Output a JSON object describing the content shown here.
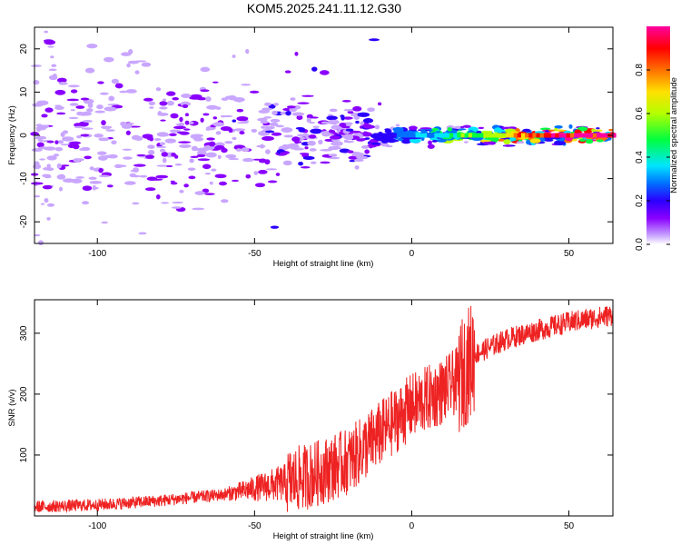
{
  "title": "KOM5.2025.241.11.12.G30",
  "chart_data": [
    {
      "type": "heatmap",
      "name": "spectrogram",
      "xlabel": "Height of straight line (km)",
      "ylabel": "Frequency (Hz)",
      "xlim": [
        -120,
        64
      ],
      "ylim": [
        -25,
        25
      ],
      "xticks": [
        -100,
        -50,
        0,
        50
      ],
      "yticks": [
        -20,
        -10,
        0,
        10,
        20
      ],
      "xtick_labels": [
        "-100",
        "-50",
        "0",
        "50"
      ],
      "ytick_labels": [
        "-20",
        "-10",
        "0",
        "10",
        "20"
      ],
      "colorbar": {
        "label": "Normalized spectral amplitude",
        "range": [
          0,
          1
        ],
        "ticks": [
          0.0,
          0.2,
          0.4,
          0.6,
          0.8
        ],
        "tick_labels": [
          "0.0",
          "0.2",
          "0.4",
          "0.6",
          "0.8"
        ],
        "colormap": [
          "#ffffff",
          "#c9a6ff",
          "#8a00ff",
          "#2b00ff",
          "#0070ff",
          "#00e5ff",
          "#00ff40",
          "#b4ff00",
          "#ffe000",
          "#ff7000",
          "#ff0000",
          "#ff00a0"
        ]
      },
      "signal_band_center_hz": 0,
      "description_values": {
        "noise_region_x": [
          -120,
          -10
        ],
        "coherent_region_x": [
          -10,
          64
        ]
      }
    },
    {
      "type": "line",
      "name": "snr",
      "xlabel": "Height of straight line (km)",
      "ylabel": "SNR (v/v)",
      "xlim": [
        -120,
        64
      ],
      "ylim": [
        0,
        355
      ],
      "xticks": [
        -100,
        -50,
        0,
        50
      ],
      "yticks": [
        100,
        200,
        300
      ],
      "xtick_labels": [
        "-100",
        "-50",
        "0",
        "50"
      ],
      "ytick_labels": [
        "100",
        "200",
        "300"
      ],
      "color": "#ee2222",
      "trend": {
        "x": [
          -120,
          -100,
          -80,
          -60,
          -40,
          -30,
          -20,
          -10,
          0,
          10,
          15,
          20,
          30,
          40,
          50,
          64
        ],
        "y": [
          15,
          18,
          25,
          35,
          55,
          70,
          90,
          135,
          180,
          205,
          225,
          265,
          290,
          305,
          318,
          330
        ]
      }
    }
  ]
}
